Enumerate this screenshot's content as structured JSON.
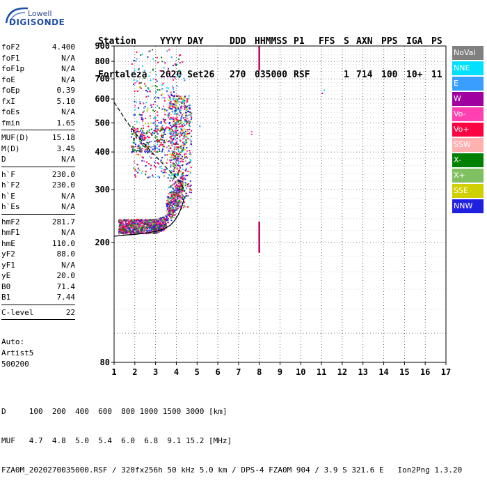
{
  "logo": {
    "line1": "Lowell",
    "line2": "DIGISONDE"
  },
  "header": {
    "labels": [
      "Station",
      "YYYY DAY",
      "DDD",
      "HHMMSS",
      "P1",
      "FFS",
      "S",
      "AXN",
      "PPS",
      "IGA",
      "PS"
    ],
    "values": [
      "Fortaleza",
      "2020 Set26",
      "270",
      "035000",
      "RSF",
      "",
      "1",
      "714",
      "100",
      "10+",
      "11"
    ]
  },
  "params_group1": [
    {
      "name": "foF2",
      "value": "4.400"
    },
    {
      "name": "foF1",
      "value": "N/A"
    },
    {
      "name": "foF1p",
      "value": "N/A"
    },
    {
      "name": "foE",
      "value": "N/A"
    },
    {
      "name": "foEp",
      "value": "0.39"
    },
    {
      "name": "fxI",
      "value": "5.10"
    },
    {
      "name": "foEs",
      "value": "N/A"
    },
    {
      "name": "fmin",
      "value": "1.65"
    }
  ],
  "params_group2": [
    {
      "name": "MUF(D)",
      "value": "15.18"
    },
    {
      "name": "M(D)",
      "value": "3.45"
    },
    {
      "name": "D",
      "value": "N/A"
    }
  ],
  "params_group3": [
    {
      "name": "h`F",
      "value": "230.0"
    },
    {
      "name": "h`F2",
      "value": "230.0"
    },
    {
      "name": "h`E",
      "value": "N/A"
    },
    {
      "name": "h`Es",
      "value": "N/A"
    }
  ],
  "params_group4": [
    {
      "name": "hmF2",
      "value": "281.7"
    },
    {
      "name": "hmF1",
      "value": "N/A"
    },
    {
      "name": "hmE",
      "value": "110.0"
    },
    {
      "name": "yF2",
      "value": "88.0"
    },
    {
      "name": "yF1",
      "value": "N/A"
    },
    {
      "name": "yE",
      "value": "20.0"
    },
    {
      "name": "B0",
      "value": "71.4"
    },
    {
      "name": "B1",
      "value": "7.44"
    }
  ],
  "clevel": {
    "name": "C-level",
    "value": "22"
  },
  "auto": {
    "line1": "Auto:",
    "line2": "Artist5",
    "line3": "500200"
  },
  "footer": {
    "line1": "D     100  200  400  600  800 1000 1500 3000 [km]",
    "line2": "MUF   4.7  4.8  5.0  5.4  6.0  6.8  9.1 15.2 [MHz]",
    "line3": "FZA0M_2020270035000.RSF / 320fx256h 50 kHz 5.0 km / DPS-4 FZA0M 904 / 3.9 S 321.6 E   Ion2Png 1.3.20"
  },
  "legend": [
    {
      "label": "NoVal",
      "color": "#808080"
    },
    {
      "label": "NNE",
      "color": "#00e0ff"
    },
    {
      "label": "E",
      "color": "#3a9eff"
    },
    {
      "label": "W",
      "color": "#a000a0"
    },
    {
      "label": "Vo-",
      "color": "#ff40b0"
    },
    {
      "label": "Vo+",
      "color": "#ff0040"
    },
    {
      "label": "SSW",
      "color": "#ffb0b0"
    },
    {
      "label": "X-",
      "color": "#008000"
    },
    {
      "label": "X+",
      "color": "#80c060"
    },
    {
      "label": "SSE",
      "color": "#d0d000"
    },
    {
      "label": "NNW",
      "color": "#2020e0"
    }
  ],
  "chart_data": {
    "type": "scatter",
    "title": "",
    "xlabel": "",
    "ylabel": "",
    "xlim": [
      1,
      17
    ],
    "ylim": [
      80,
      900
    ],
    "y_scale": "log",
    "x_ticks": [
      1,
      2,
      3,
      4,
      5,
      6,
      7,
      8,
      9,
      10,
      11,
      12,
      13,
      14,
      15,
      16,
      17
    ],
    "y_ticks": [
      80,
      200,
      300,
      400,
      500,
      600,
      700,
      800,
      900
    ],
    "grid": true,
    "legend_position": "right",
    "trace_lower": {
      "x": [
        1.0,
        1.3,
        1.6,
        2.0,
        2.5,
        3.0,
        3.4,
        3.7,
        3.9,
        4.1,
        4.25,
        4.35,
        4.4
      ],
      "y": [
        210,
        211,
        212,
        213,
        215,
        218,
        222,
        228,
        236,
        248,
        262,
        276,
        285
      ]
    },
    "trace_upper": {
      "x": [
        1.0,
        1.3,
        1.6,
        2.0,
        2.4,
        2.8,
        3.2,
        3.6,
        3.9,
        4.1,
        4.3,
        4.4
      ],
      "y": [
        585,
        545,
        505,
        465,
        430,
        400,
        375,
        350,
        335,
        322,
        308,
        295
      ]
    },
    "vertical_trace": {
      "x": 8.0,
      "y_ranges": [
        [
          745,
          900
        ],
        [
          185,
          235
        ]
      ]
    }
  }
}
